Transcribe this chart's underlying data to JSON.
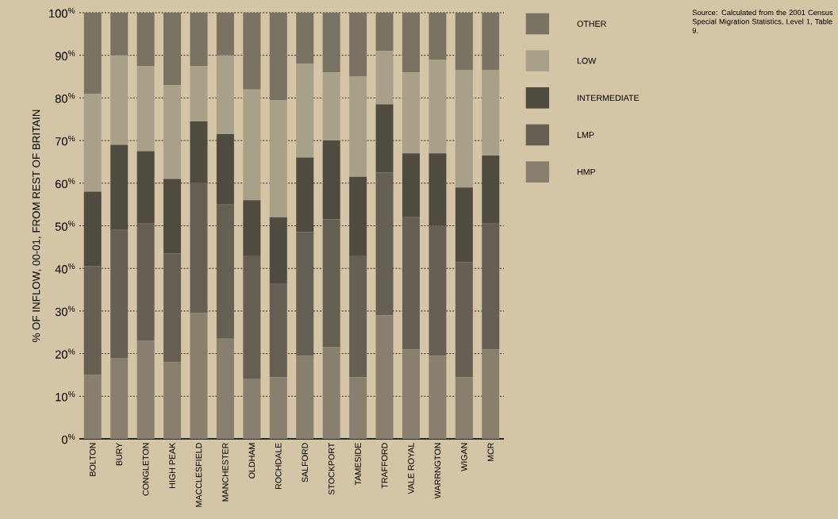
{
  "chart_data": {
    "type": "bar",
    "stacked": true,
    "ylabel": "% OF INFLOW, 00-01, FROM REST OF BRITAIN",
    "categories": [
      "BOLTON",
      "BURY",
      "CONGLETON",
      "HIGH PEAK",
      "MACCLESFIELD",
      "MANCHESTER",
      "OLDHAM",
      "ROCHDALE",
      "SALFORD",
      "STOCKPORT",
      "TAMESIDE",
      "TRAFFORD",
      "VALE ROYAL",
      "WARRNGTON",
      "WIGAN",
      "MCR"
    ],
    "series": [
      {
        "name": "HMP",
        "color": "#887f6e",
        "values": [
          15,
          19,
          23,
          18,
          29.5,
          23.5,
          14,
          14.5,
          19.5,
          21.5,
          14.5,
          29,
          21,
          19.5,
          14.5,
          21
        ]
      },
      {
        "name": "LMP",
        "color": "#665f53",
        "values": [
          25.5,
          30,
          27.5,
          25.5,
          30.5,
          31.5,
          29,
          22,
          29,
          30,
          28.5,
          33.5,
          31,
          30.5,
          27,
          29.5
        ]
      },
      {
        "name": "INTERMEDIATE",
        "color": "#4f4b40",
        "values": [
          17.5,
          20,
          17,
          17.5,
          14.5,
          16.5,
          13,
          15.5,
          17.5,
          18.5,
          18.5,
          16,
          15,
          17,
          17.5,
          16
        ]
      },
      {
        "name": "LOW",
        "color": "#a9a08a",
        "values": [
          23,
          21,
          20,
          22,
          13,
          18.5,
          26,
          27.5,
          22,
          16,
          23.5,
          12.5,
          19,
          22,
          27.5,
          20
        ]
      },
      {
        "name": "OTHER",
        "color": "#7a7363",
        "values": [
          19,
          10,
          12.5,
          17,
          12.5,
          10,
          18,
          20.5,
          12,
          14,
          15,
          9,
          14,
          11,
          13.5,
          13.5
        ]
      }
    ],
    "ylim": [
      0,
      100
    ],
    "yticks": [
      {
        "value": 0,
        "label": "0$^{%}$"
      },
      {
        "value": 10,
        "label": "10$^{%}$"
      },
      {
        "value": 20,
        "label": "20$^{%}$"
      },
      {
        "value": 30,
        "label": "30$^{%}$"
      },
      {
        "value": 40,
        "label": "40$^{%}$"
      },
      {
        "value": 50,
        "label": "50$^{%}$"
      },
      {
        "value": 60,
        "label": "60$^{%}$"
      },
      {
        "value": 70,
        "label": "70$^{%}$"
      },
      {
        "value": 80,
        "label": "80$^{%}$"
      },
      {
        "value": 90,
        "label": "90$^{%}$"
      },
      {
        "value": 100,
        "label": "100$^{%}$"
      }
    ],
    "grid": "y",
    "legend": "right",
    "annotations": [
      "Source: Calculated from the 2001 Census Special Migration Statistics, Level 1, Table 9."
    ]
  }
}
